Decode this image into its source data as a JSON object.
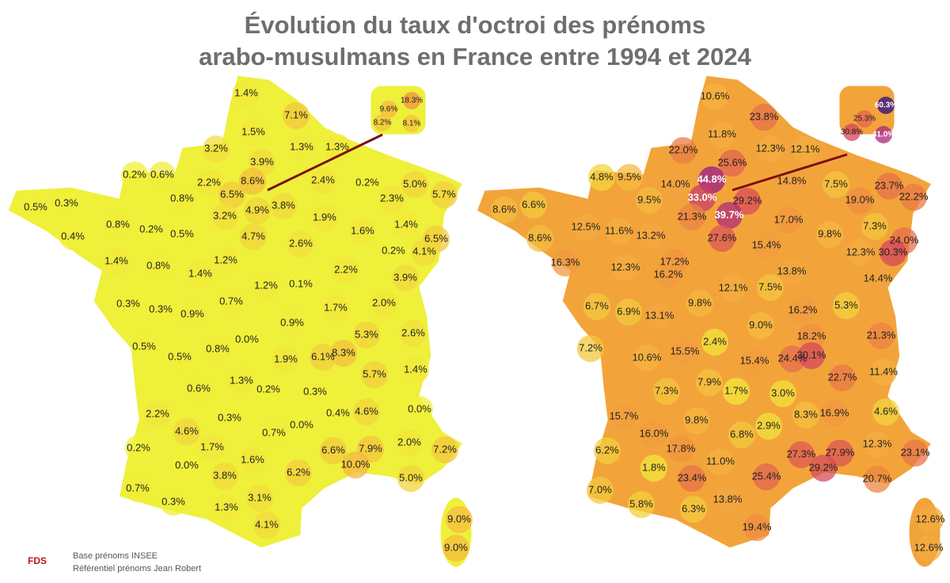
{
  "header": {
    "title_line1": "Évolution du taux d'octroi des prénoms",
    "title_line2": "arabo-musulmans en France entre 1994 et 2024"
  },
  "maps": [
    {
      "labels": [
        "1.4%",
        "7.1%",
        "1.5%",
        "1.3%",
        "1.3%",
        "3.2%",
        "3.9%",
        "0.2%",
        "0.6%",
        "2.2%",
        "8.6%",
        "2.4%",
        "0.2%",
        "5.0%",
        "6.5%",
        "0.8%",
        "2.3%",
        "5.7%",
        "0.5%",
        "0.3%",
        "4.9%",
        "3.8%",
        "3.2%",
        "1.9%",
        "0.8%",
        "0.2%",
        "1.4%",
        "0.4%",
        "0.5%",
        "4.7%",
        "1.6%",
        "6.5%",
        "2.6%",
        "0.2%",
        "4.1%",
        "1.4%",
        "0.8%",
        "1.2%",
        "1.4%",
        "2.2%",
        "3.9%",
        "1.2%",
        "0.1%",
        "0.7%",
        "0.3%",
        "0.3%",
        "0.9%",
        "1.7%",
        "2.0%",
        "0.9%",
        "0.0%",
        "5.3%",
        "2.6%",
        "0.5%",
        "0.8%",
        "8.3%",
        "6.1%",
        "1.9%",
        "0.5%",
        "1.4%",
        "5.7%",
        "1.3%",
        "0.6%",
        "0.2%",
        "0.3%",
        "2.2%",
        "0.3%",
        "0.4%",
        "4.6%",
        "0.0%",
        "4.6%",
        "0.7%",
        "0.0%",
        "1.7%",
        "0.2%",
        "1.6%",
        "6.6%",
        "7.9%",
        "2.0%",
        "7.2%",
        "0.0%",
        "10.0%",
        "3.8%",
        "6.2%",
        "5.0%",
        "0.7%",
        "3.1%",
        "0.3%",
        "1.3%",
        "4.1%",
        "9.0%",
        "9.0%"
      ],
      "inset": [
        "18.3%",
        "9.6%",
        "8.2%",
        "8.1%"
      ]
    },
    {
      "labels": [
        "10.6%",
        "23.8%",
        "11.8%",
        "12.3%",
        "12.1%",
        "22.0%",
        "25.6%",
        "4.8%",
        "9.5%",
        "14.0%",
        "44.8%",
        "14.8%",
        "7.5%",
        "23.7%",
        "33.0%",
        "29.2%",
        "9.5%",
        "19.0%",
        "22.2%",
        "8.6%",
        "6.6%",
        "21.3%",
        "39.7%",
        "17.0%",
        "8.6%",
        "12.5%",
        "11.6%",
        "13.2%",
        "27.6%",
        "9.8%",
        "7.3%",
        "15.4%",
        "24.0%",
        "12.3%",
        "30.3%",
        "16.3%",
        "12.3%",
        "17.2%",
        "16.2%",
        "13.8%",
        "14.4%",
        "12.1%",
        "7.5%",
        "6.7%",
        "6.9%",
        "13.1%",
        "9.8%",
        "16.2%",
        "5.3%",
        "9.0%",
        "18.2%",
        "21.3%",
        "7.2%",
        "2.4%",
        "15.5%",
        "10.6%",
        "24.4%",
        "30.1%",
        "15.4%",
        "11.4%",
        "22.7%",
        "7.9%",
        "7.3%",
        "1.7%",
        "3.0%",
        "8.3%",
        "16.9%",
        "4.6%",
        "15.7%",
        "9.8%",
        "6.8%",
        "2.9%",
        "16.0%",
        "12.3%",
        "23.1%",
        "27.3%",
        "27.9%",
        "6.2%",
        "17.8%",
        "11.0%",
        "29.2%",
        "20.7%",
        "1.8%",
        "23.4%",
        "25.4%",
        "7.0%",
        "5.8%",
        "13.8%",
        "6.3%",
        "19.4%",
        "12.6%",
        "12.6%"
      ],
      "inset": [
        "60.3%",
        "25.3%",
        "30.8%",
        "41.0%"
      ]
    }
  ],
  "footer": {
    "logo": "FDS",
    "source1": "Base prénoms INSEE",
    "source2": "Référentiel prénoms Jean Robert"
  }
}
